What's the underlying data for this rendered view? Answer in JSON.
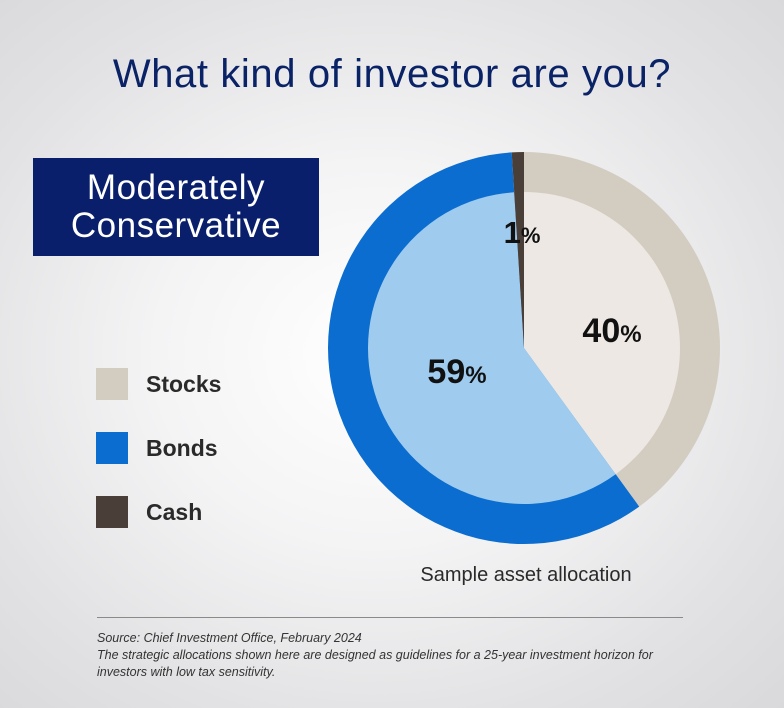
{
  "title": "What kind of investor are you?",
  "profile": {
    "line1": "Moderately",
    "line2": "Conservative"
  },
  "legend": [
    {
      "label": "Stocks",
      "color": "#d3ccc1"
    },
    {
      "label": "Bonds",
      "color": "#0a6dcf"
    },
    {
      "label": "Cash",
      "color": "#4a3f38"
    }
  ],
  "chart_data": {
    "type": "pie",
    "style": "donut ring with lighter inner fill",
    "categories": [
      "Stocks",
      "Bonds",
      "Cash"
    ],
    "values": [
      40,
      59,
      1
    ],
    "value_labels": [
      "40",
      "59",
      "1"
    ],
    "unit": "%",
    "outer_colors": [
      "#d3ccc1",
      "#0a6dcf",
      "#4a3f38"
    ],
    "inner_colors": [
      "#ede8e3",
      "#9fcbef",
      "#4a3f38"
    ],
    "caption": "Sample asset allocation"
  },
  "footnote": {
    "source_label": "Source:",
    "source_text": "Chief Investment Office, February 2024",
    "note": "The strategic allocations shown here are designed as guidelines for a 25-year investment horizon for investors with low tax sensitivity."
  }
}
